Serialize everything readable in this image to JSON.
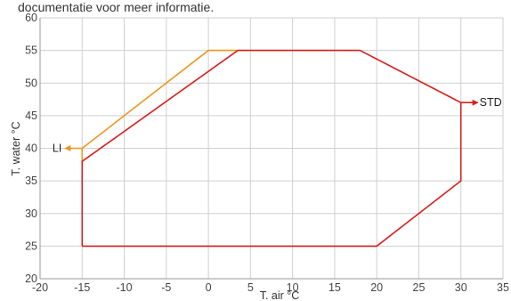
{
  "header_text": "documentatie voor meer informatie.",
  "chart_data": {
    "type": "line",
    "xlabel": "T. air °C",
    "ylabel": "T. water °C",
    "xlim": [
      -20,
      35
    ],
    "ylim": [
      20,
      60
    ],
    "x_ticks": [
      -20,
      -15,
      -10,
      -5,
      0,
      5,
      10,
      15,
      20,
      25,
      30,
      35
    ],
    "y_ticks": [
      20,
      25,
      30,
      35,
      40,
      45,
      50,
      55,
      60
    ],
    "grid": true,
    "series": [
      {
        "name": "STD",
        "color": "#d81e1e",
        "points": [
          [
            -15,
            25
          ],
          [
            -15,
            38
          ],
          [
            3.5,
            55
          ],
          [
            18,
            55
          ],
          [
            30,
            47
          ],
          [
            30,
            35
          ],
          [
            20,
            25
          ],
          [
            -15,
            25
          ]
        ]
      },
      {
        "name": "LI",
        "color": "#f0961e",
        "points": [
          [
            -15,
            38
          ],
          [
            -15,
            40
          ],
          [
            0,
            55
          ],
          [
            3.5,
            55
          ]
        ]
      }
    ],
    "annotations": [
      {
        "text": "STD",
        "arrow_from": [
          30,
          47
        ],
        "arrow_to": [
          32,
          47
        ],
        "color": "#d81e1e",
        "direction": "right"
      },
      {
        "text": "LI",
        "arrow_from": [
          -15,
          40
        ],
        "arrow_to": [
          -17,
          40
        ],
        "color": "#f0961e",
        "direction": "left"
      }
    ]
  }
}
